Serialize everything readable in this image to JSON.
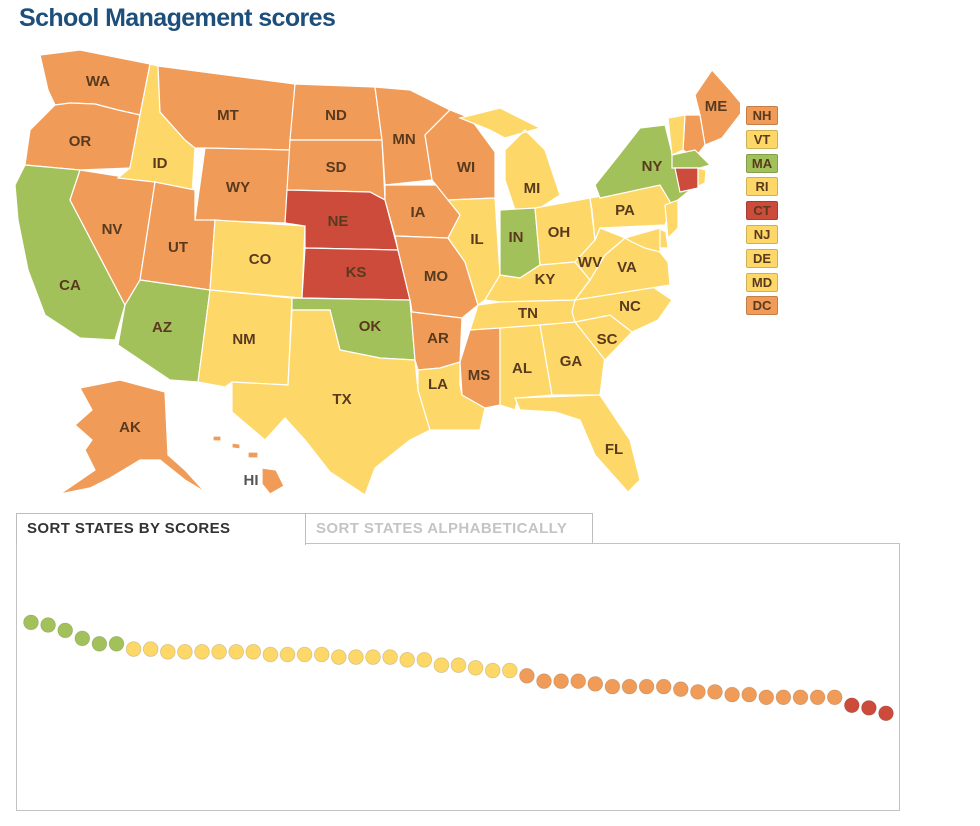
{
  "title": "School Management scores",
  "colors": {
    "green": "#a3c15a",
    "yellow": "#fdd868",
    "orange": "#f09c58",
    "red": "#cc4b3b",
    "label": "#5a3a1e",
    "title": "#1d4f7c"
  },
  "states": [
    {
      "abbr": "WA",
      "category": "orange"
    },
    {
      "abbr": "OR",
      "category": "orange"
    },
    {
      "abbr": "CA",
      "category": "green"
    },
    {
      "abbr": "NV",
      "category": "orange"
    },
    {
      "abbr": "ID",
      "category": "yellow"
    },
    {
      "abbr": "MT",
      "category": "orange"
    },
    {
      "abbr": "WY",
      "category": "orange"
    },
    {
      "abbr": "UT",
      "category": "orange"
    },
    {
      "abbr": "AZ",
      "category": "green"
    },
    {
      "abbr": "CO",
      "category": "yellow"
    },
    {
      "abbr": "NM",
      "category": "yellow"
    },
    {
      "abbr": "ND",
      "category": "orange"
    },
    {
      "abbr": "SD",
      "category": "orange"
    },
    {
      "abbr": "NE",
      "category": "red"
    },
    {
      "abbr": "KS",
      "category": "red"
    },
    {
      "abbr": "OK",
      "category": "green"
    },
    {
      "abbr": "TX",
      "category": "yellow"
    },
    {
      "abbr": "MN",
      "category": "orange"
    },
    {
      "abbr": "IA",
      "category": "orange"
    },
    {
      "abbr": "MO",
      "category": "orange"
    },
    {
      "abbr": "AR",
      "category": "orange"
    },
    {
      "abbr": "LA",
      "category": "yellow"
    },
    {
      "abbr": "WI",
      "category": "orange"
    },
    {
      "abbr": "IL",
      "category": "yellow"
    },
    {
      "abbr": "MI",
      "category": "yellow"
    },
    {
      "abbr": "IN",
      "category": "green"
    },
    {
      "abbr": "OH",
      "category": "yellow"
    },
    {
      "abbr": "KY",
      "category": "yellow"
    },
    {
      "abbr": "TN",
      "category": "yellow"
    },
    {
      "abbr": "MS",
      "category": "orange"
    },
    {
      "abbr": "AL",
      "category": "yellow"
    },
    {
      "abbr": "GA",
      "category": "yellow"
    },
    {
      "abbr": "FL",
      "category": "yellow"
    },
    {
      "abbr": "SC",
      "category": "yellow"
    },
    {
      "abbr": "NC",
      "category": "yellow"
    },
    {
      "abbr": "VA",
      "category": "yellow"
    },
    {
      "abbr": "WV",
      "category": "yellow"
    },
    {
      "abbr": "PA",
      "category": "yellow"
    },
    {
      "abbr": "NY",
      "category": "green"
    },
    {
      "abbr": "ME",
      "category": "orange"
    },
    {
      "abbr": "AK",
      "category": "orange"
    },
    {
      "abbr": "HI",
      "category": "orange"
    }
  ],
  "legend": [
    {
      "abbr": "NH",
      "category": "orange"
    },
    {
      "abbr": "VT",
      "category": "yellow"
    },
    {
      "abbr": "MA",
      "category": "green"
    },
    {
      "abbr": "RI",
      "category": "yellow"
    },
    {
      "abbr": "CT",
      "category": "red"
    },
    {
      "abbr": "NJ",
      "category": "yellow"
    },
    {
      "abbr": "DE",
      "category": "yellow"
    },
    {
      "abbr": "MD",
      "category": "yellow"
    },
    {
      "abbr": "DC",
      "category": "orange"
    }
  ],
  "tabs": {
    "by_scores": "SORT STATES BY SCORES",
    "alphabetical": "SORT STATES ALPHABETICALLY",
    "active": "by_scores"
  },
  "chart_data": {
    "type": "scatter",
    "sorted_by": "score",
    "points": [
      {
        "score": 0.98,
        "category": "green"
      },
      {
        "score": 0.97,
        "category": "green"
      },
      {
        "score": 0.95,
        "category": "green"
      },
      {
        "score": 0.92,
        "category": "green"
      },
      {
        "score": 0.9,
        "category": "green"
      },
      {
        "score": 0.9,
        "category": "green"
      },
      {
        "score": 0.88,
        "category": "yellow"
      },
      {
        "score": 0.88,
        "category": "yellow"
      },
      {
        "score": 0.87,
        "category": "yellow"
      },
      {
        "score": 0.87,
        "category": "yellow"
      },
      {
        "score": 0.87,
        "category": "yellow"
      },
      {
        "score": 0.87,
        "category": "yellow"
      },
      {
        "score": 0.87,
        "category": "yellow"
      },
      {
        "score": 0.87,
        "category": "yellow"
      },
      {
        "score": 0.86,
        "category": "yellow"
      },
      {
        "score": 0.86,
        "category": "yellow"
      },
      {
        "score": 0.86,
        "category": "yellow"
      },
      {
        "score": 0.86,
        "category": "yellow"
      },
      {
        "score": 0.85,
        "category": "yellow"
      },
      {
        "score": 0.85,
        "category": "yellow"
      },
      {
        "score": 0.85,
        "category": "yellow"
      },
      {
        "score": 0.85,
        "category": "yellow"
      },
      {
        "score": 0.84,
        "category": "yellow"
      },
      {
        "score": 0.84,
        "category": "yellow"
      },
      {
        "score": 0.82,
        "category": "yellow"
      },
      {
        "score": 0.82,
        "category": "yellow"
      },
      {
        "score": 0.81,
        "category": "yellow"
      },
      {
        "score": 0.8,
        "category": "yellow"
      },
      {
        "score": 0.8,
        "category": "yellow"
      },
      {
        "score": 0.78,
        "category": "orange"
      },
      {
        "score": 0.76,
        "category": "orange"
      },
      {
        "score": 0.76,
        "category": "orange"
      },
      {
        "score": 0.76,
        "category": "orange"
      },
      {
        "score": 0.75,
        "category": "orange"
      },
      {
        "score": 0.74,
        "category": "orange"
      },
      {
        "score": 0.74,
        "category": "orange"
      },
      {
        "score": 0.74,
        "category": "orange"
      },
      {
        "score": 0.74,
        "category": "orange"
      },
      {
        "score": 0.73,
        "category": "orange"
      },
      {
        "score": 0.72,
        "category": "orange"
      },
      {
        "score": 0.72,
        "category": "orange"
      },
      {
        "score": 0.71,
        "category": "orange"
      },
      {
        "score": 0.71,
        "category": "orange"
      },
      {
        "score": 0.7,
        "category": "orange"
      },
      {
        "score": 0.7,
        "category": "orange"
      },
      {
        "score": 0.7,
        "category": "orange"
      },
      {
        "score": 0.7,
        "category": "orange"
      },
      {
        "score": 0.7,
        "category": "orange"
      },
      {
        "score": 0.67,
        "category": "red"
      },
      {
        "score": 0.66,
        "category": "red"
      },
      {
        "score": 0.64,
        "category": "red"
      }
    ]
  }
}
